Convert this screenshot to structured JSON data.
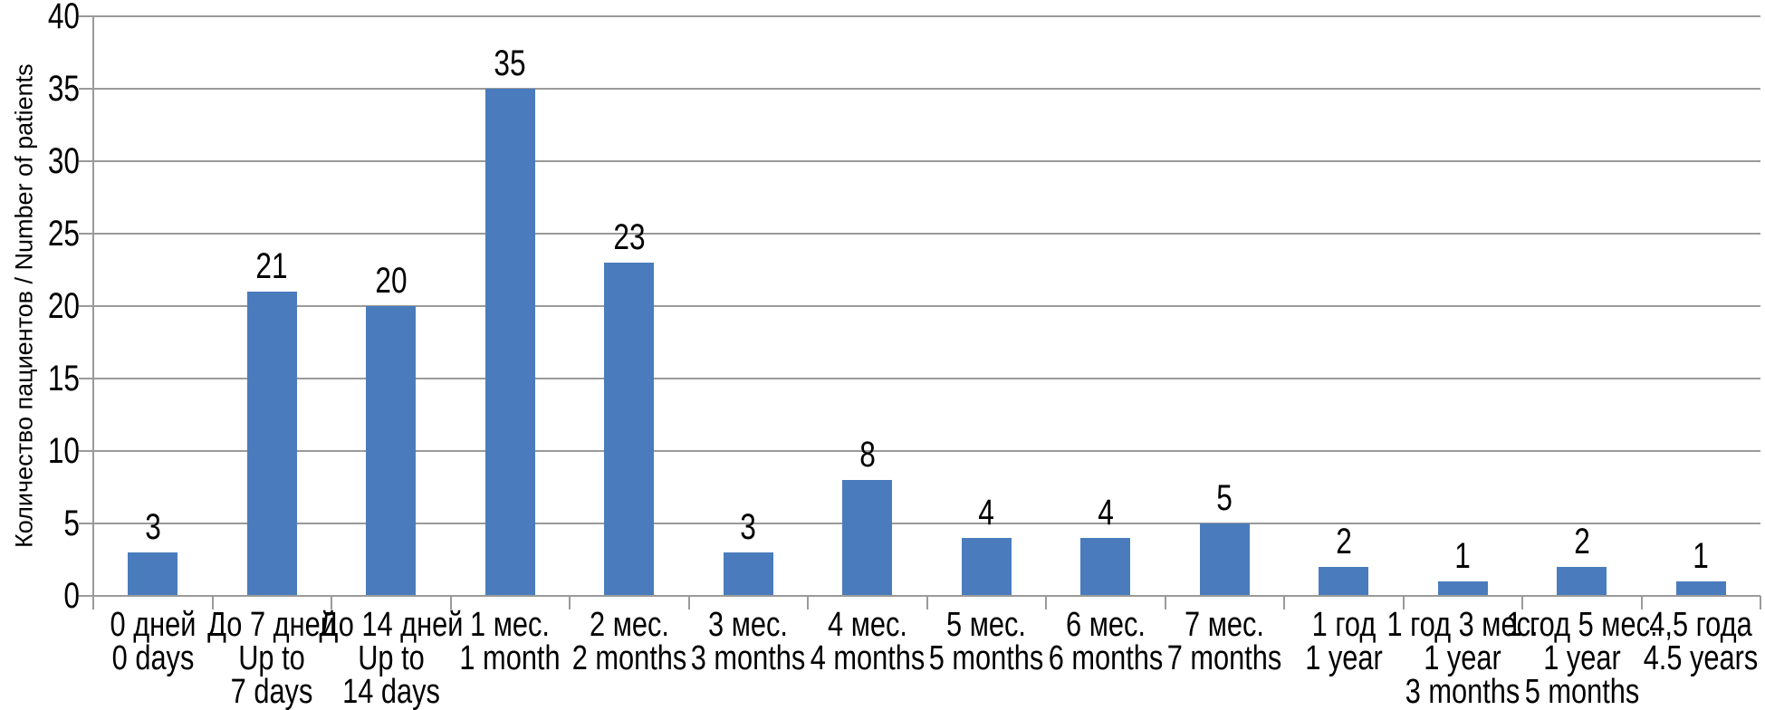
{
  "figure": {
    "background": "#ffffff"
  },
  "chart_data": {
    "type": "bar",
    "title": "",
    "xlabel": "",
    "ylabel": "Количество пациентов / Number of patients",
    "ylim": [
      0,
      40
    ],
    "ytick_step": 5,
    "yticks": [
      0,
      5,
      10,
      15,
      20,
      25,
      30,
      35,
      40
    ],
    "grid": true,
    "legend": "none",
    "bar_color": "#4a7cbd",
    "gridline_color": "#9a9a9a",
    "axis_color": "#9a9a9a",
    "text_color": "#000000",
    "categories": [
      [
        "0 дней",
        "0 days"
      ],
      [
        "До 7 дней",
        "Up to",
        "7 days"
      ],
      [
        "До 14 дней",
        "Up to",
        "14 days"
      ],
      [
        "1 мес.",
        "1 month"
      ],
      [
        "2 мес.",
        "2 months"
      ],
      [
        "3 мес.",
        "3 months"
      ],
      [
        "4 мес.",
        "4 months"
      ],
      [
        "5 мес.",
        "5 months"
      ],
      [
        "6 мес.",
        "6 months"
      ],
      [
        "7 мес.",
        "7 months"
      ],
      [
        "1 год",
        "1 year"
      ],
      [
        "1 год 3 мес.",
        "1 year",
        "3 months"
      ],
      [
        "1 год 5 мес.",
        "1 year",
        "5 months"
      ],
      [
        "4,5 года",
        "4.5 years"
      ]
    ],
    "values": [
      3,
      21,
      20,
      35,
      23,
      3,
      8,
      4,
      4,
      5,
      2,
      1,
      2,
      1
    ]
  }
}
